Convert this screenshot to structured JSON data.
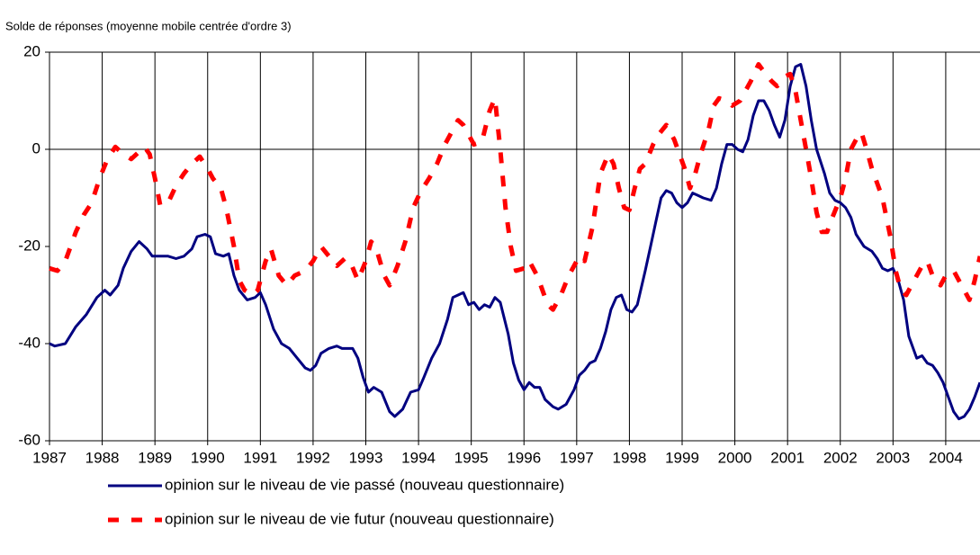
{
  "chart_data": {
    "type": "line",
    "title": "Solde de réponses (moyenne mobile centrée d'ordre 3)",
    "xlim": [
      1987,
      2004.65
    ],
    "ylim": [
      -60,
      20
    ],
    "xticks": [
      1987,
      1988,
      1989,
      1990,
      1991,
      1992,
      1993,
      1994,
      1995,
      1996,
      1997,
      1998,
      1999,
      2000,
      2001,
      2002,
      2003,
      2004
    ],
    "yticks": [
      -60,
      -40,
      -20,
      0,
      20
    ],
    "grid": "x",
    "series": [
      {
        "name": "opinion sur le niveau de vie passé (nouveau questionnaire)",
        "color": "#000080",
        "dashed": false,
        "x": [
          1987.0,
          1987.1,
          1987.3,
          1987.5,
          1987.7,
          1987.9,
          1988.05,
          1988.15,
          1988.3,
          1988.4,
          1988.55,
          1988.7,
          1988.85,
          1988.95,
          1989.1,
          1989.25,
          1989.4,
          1989.55,
          1989.7,
          1989.8,
          1989.95,
          1990.05,
          1990.15,
          1990.3,
          1990.4,
          1990.5,
          1990.6,
          1990.75,
          1990.9,
          1991.0,
          1991.1,
          1991.25,
          1991.4,
          1991.55,
          1991.7,
          1991.85,
          1991.95,
          1992.05,
          1992.15,
          1992.3,
          1992.45,
          1992.55,
          1992.75,
          1992.85,
          1992.95,
          1993.05,
          1993.15,
          1993.3,
          1993.45,
          1993.55,
          1993.7,
          1993.85,
          1994.0,
          1994.1,
          1994.25,
          1994.4,
          1994.55,
          1994.65,
          1994.75,
          1994.85,
          1994.95,
          1995.05,
          1995.15,
          1995.25,
          1995.35,
          1995.45,
          1995.55,
          1995.7,
          1995.8,
          1995.9,
          1996.0,
          1996.1,
          1996.2,
          1996.3,
          1996.4,
          1996.55,
          1996.65,
          1996.8,
          1996.95,
          1997.05,
          1997.15,
          1997.25,
          1997.35,
          1997.45,
          1997.55,
          1997.65,
          1997.75,
          1997.85,
          1997.95,
          1998.05,
          1998.15,
          1998.3,
          1998.4,
          1998.5,
          1998.6,
          1998.7,
          1998.8,
          1998.9,
          1999.0,
          1999.1,
          1999.2,
          1999.3,
          1999.4,
          1999.55,
          1999.65,
          1999.75,
          1999.85,
          1999.95,
          2000.05,
          2000.15,
          2000.25,
          2000.35,
          2000.45,
          2000.55,
          2000.65,
          2000.75,
          2000.85,
          2000.95,
          2001.05,
          2001.15,
          2001.25,
          2001.35,
          2001.45,
          2001.55,
          2001.7,
          2001.8,
          2001.9,
          2002.0,
          2002.1,
          2002.2,
          2002.3,
          2002.45,
          2002.6,
          2002.7,
          2002.8,
          2002.9,
          2003.0,
          2003.1,
          2003.2,
          2003.3,
          2003.45,
          2003.55,
          2003.65,
          2003.75,
          2003.85,
          2003.95,
          2004.05,
          2004.15,
          2004.25,
          2004.35,
          2004.45,
          2004.55,
          2004.65
        ],
        "values": [
          -40,
          -40.5,
          -40,
          -36.5,
          -34,
          -30.5,
          -29,
          -30,
          -28,
          -24.5,
          -21,
          -19,
          -20.5,
          -22,
          -22,
          -22,
          -22.5,
          -22,
          -20.5,
          -18,
          -17.5,
          -18,
          -21.5,
          -22,
          -21.5,
          -26,
          -29,
          -31,
          -30.5,
          -29.5,
          -32,
          -37,
          -40,
          -41,
          -43,
          -45,
          -45.5,
          -44.5,
          -42,
          -41,
          -40.5,
          -41,
          -41,
          -43,
          -47,
          -50,
          -49,
          -50,
          -54,
          -55,
          -53.5,
          -50,
          -49.5,
          -47,
          -43,
          -40,
          -35,
          -30.5,
          -30,
          -29.5,
          -32,
          -31.5,
          -33,
          -32,
          -32.5,
          -30.5,
          -31.5,
          -38,
          -44,
          -47.5,
          -49.5,
          -48,
          -49,
          -49,
          -51.5,
          -53,
          -53.5,
          -52.5,
          -49.5,
          -46.5,
          -45.5,
          -44,
          -43.5,
          -41,
          -37.5,
          -33,
          -30.5,
          -30,
          -33,
          -33.5,
          -32,
          -25,
          -20,
          -15,
          -10,
          -8.5,
          -9,
          -11,
          -12,
          -11,
          -9,
          -9.5,
          -10,
          -10.5,
          -8,
          -3,
          1,
          1,
          0,
          -0.5,
          2,
          7,
          10,
          10,
          8,
          5,
          2.5,
          6,
          13,
          17,
          17.5,
          13,
          6,
          0,
          -5,
          -9,
          -10.5,
          -11,
          -12,
          -14,
          -17.5,
          -20,
          -21,
          -22.5,
          -24.5,
          -25,
          -24.5,
          -27,
          -31,
          -38.5,
          -43,
          -42.5,
          -44,
          -44.5,
          -46,
          -48,
          -51,
          -54,
          -55.5,
          -55,
          -53.5,
          -51,
          -48
        ]
      },
      {
        "name": "opinion sur le niveau de vie futur (nouveau questionnaire)",
        "color": "#ff0000",
        "dashed": true,
        "x": [
          1987.0,
          1987.15,
          1987.3,
          1987.5,
          1987.65,
          1987.8,
          1987.95,
          1988.1,
          1988.25,
          1988.4,
          1988.55,
          1988.65,
          1988.8,
          1988.9,
          1989.0,
          1989.1,
          1989.25,
          1989.4,
          1989.55,
          1989.7,
          1989.85,
          1990.0,
          1990.1,
          1990.25,
          1990.35,
          1990.5,
          1990.6,
          1990.7,
          1990.85,
          1990.95,
          1991.1,
          1991.2,
          1991.35,
          1991.5,
          1991.65,
          1991.85,
          1992.0,
          1992.15,
          1992.3,
          1992.45,
          1992.6,
          1992.7,
          1992.85,
          1993.0,
          1993.1,
          1993.2,
          1993.35,
          1993.45,
          1993.6,
          1993.75,
          1993.9,
          1994.05,
          1994.2,
          1994.35,
          1994.5,
          1994.65,
          1994.75,
          1994.85,
          1994.95,
          1995.05,
          1995.2,
          1995.35,
          1995.45,
          1995.55,
          1995.65,
          1995.75,
          1995.85,
          1996.0,
          1996.1,
          1996.25,
          1996.35,
          1996.45,
          1996.55,
          1996.7,
          1996.85,
          1997.05,
          1997.15,
          1997.3,
          1997.45,
          1997.6,
          1997.7,
          1997.8,
          1997.9,
          1998.0,
          1998.1,
          1998.2,
          1998.3,
          1998.45,
          1998.55,
          1998.7,
          1998.85,
          1998.95,
          1999.05,
          1999.15,
          1999.25,
          1999.35,
          1999.5,
          1999.6,
          1999.7,
          1999.85,
          1999.95,
          2000.1,
          2000.2,
          2000.3,
          2000.45,
          2000.55,
          2000.7,
          2000.8,
          2000.95,
          2001.05,
          2001.15,
          2001.25,
          2001.35,
          2001.45,
          2001.55,
          2001.65,
          2001.75,
          2001.85,
          2002.0,
          2002.1,
          2002.2,
          2002.3,
          2002.4,
          2002.5,
          2002.6,
          2002.7,
          2002.8,
          2002.95,
          2003.05,
          2003.15,
          2003.25,
          2003.4,
          2003.55,
          2003.65,
          2003.75,
          2003.9,
          2004.0,
          2004.15,
          2004.3,
          2004.45,
          2004.55,
          2004.65
        ],
        "values": [
          -24.5,
          -25,
          -23,
          -17,
          -13.5,
          -11,
          -6,
          -2,
          0.5,
          -1,
          -2,
          -1,
          0.5,
          -1,
          -6,
          -11.5,
          -11,
          -7.5,
          -5,
          -3,
          -1.5,
          -4,
          -6,
          -8,
          -12,
          -20,
          -27,
          -29,
          -30,
          -29,
          -23,
          -20.5,
          -26,
          -28,
          -26,
          -25,
          -23,
          -20,
          -22,
          -24,
          -22.5,
          -23,
          -27,
          -23,
          -19,
          -20.5,
          -26,
          -28,
          -24,
          -19,
          -12,
          -8.5,
          -6,
          -3,
          1,
          4,
          6,
          5,
          3,
          1,
          1.5,
          8,
          10.5,
          0,
          -12,
          -20,
          -25,
          -24.5,
          -23,
          -26,
          -29,
          -32,
          -33,
          -30,
          -26,
          -22,
          -23,
          -16,
          -5,
          -1,
          -3,
          -8,
          -12,
          -12.5,
          -8,
          -4,
          -3,
          1,
          3,
          5,
          2,
          -1,
          -4,
          -8,
          -5,
          -1,
          4,
          9,
          10.5,
          10,
          9,
          10,
          12,
          14,
          17.5,
          16,
          14,
          13,
          15,
          15.5,
          12,
          6,
          0,
          -6,
          -13,
          -17,
          -17,
          -14,
          -10,
          -6,
          0,
          2,
          3.5,
          0,
          -4,
          -7,
          -10,
          -18,
          -25,
          -29,
          -30,
          -27,
          -24,
          -23,
          -26,
          -28,
          -26,
          -25,
          -28,
          -31,
          -27,
          -22
        ]
      }
    ]
  }
}
